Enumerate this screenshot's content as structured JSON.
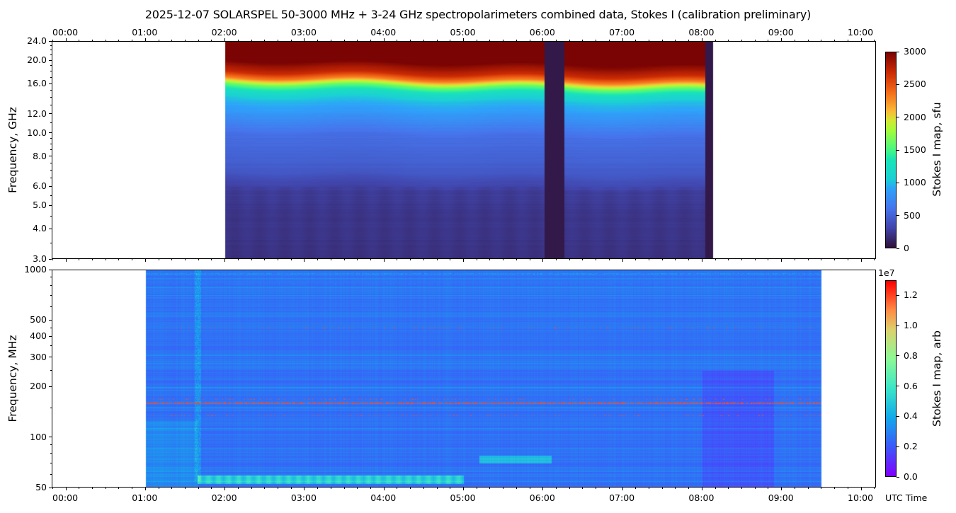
{
  "title": "2025-12-07  SOLARSPEL  50-3000 MHz  +  3-24 GHz  spectropolarimeters combined data,  Stokes I  (calibration preliminary)",
  "x_axis_label": "UTC Time",
  "chart_data": [
    {
      "type": "heatmap",
      "panel": "top",
      "ylabel": "Frequency, GHz",
      "yscale": "log",
      "ylim": [
        3.0,
        24.0
      ],
      "yticks": [
        "3.0",
        "4.0",
        "5.0",
        "6.0",
        "8.0",
        "10.0",
        "12.0",
        "16.0",
        "20.0",
        "24.0"
      ],
      "xlim": [
        "23:49",
        "10:11"
      ],
      "xticks": [
        "00:00",
        "01:00",
        "02:00",
        "03:00",
        "04:00",
        "05:00",
        "06:00",
        "07:00",
        "08:00",
        "09:00",
        "10:00"
      ],
      "xtick_labels_position": "top",
      "data_coverage": [
        [
          "02:00",
          "08:08"
        ]
      ],
      "low_signal_gaps": [
        [
          "06:01",
          "06:16"
        ],
        [
          "08:02",
          "08:08"
        ]
      ],
      "colormap": "turbo",
      "colorbar": {
        "label": "Stokes I map, sfu",
        "range": [
          0,
          3000
        ],
        "ticks": [
          "0",
          "500",
          "1000",
          "1500",
          "2000",
          "2500",
          "3000"
        ]
      },
      "spectrum_profile_sfu": {
        "frequencies_ghz": [
          3,
          4,
          5,
          6,
          7,
          8,
          10,
          12,
          14,
          15,
          16,
          17,
          18,
          20,
          24
        ],
        "values": [
          180,
          200,
          220,
          260,
          420,
          480,
          560,
          800,
          1000,
          1200,
          1600,
          2300,
          2700,
          3000,
          3000
        ]
      }
    },
    {
      "type": "heatmap",
      "panel": "bottom",
      "ylabel": "Frequency, MHz",
      "yscale": "log",
      "ylim": [
        50,
        1000
      ],
      "yticks": [
        "50",
        "100",
        "200",
        "300",
        "400",
        "500",
        "1000"
      ],
      "xlim": [
        "23:49",
        "10:11"
      ],
      "xticks": [
        "00:00",
        "01:00",
        "02:00",
        "03:00",
        "04:00",
        "05:00",
        "06:00",
        "07:00",
        "08:00",
        "09:00",
        "10:00"
      ],
      "xtick_labels_position": "bottom",
      "data_coverage": [
        [
          "01:00",
          "09:30"
        ]
      ],
      "colormap": "rainbow",
      "colorbar": {
        "label": "Stokes I map, arb",
        "range": [
          0,
          1.3
        ],
        "ticks": [
          "0.0",
          "0.2",
          "0.4",
          "0.6",
          "0.8",
          "1.0",
          "1.2"
        ],
        "multiplier": "1e7"
      },
      "interference_lines_mhz": [
        160,
        168,
        135,
        450,
        950,
        820
      ],
      "background_level": 0.25
    }
  ]
}
